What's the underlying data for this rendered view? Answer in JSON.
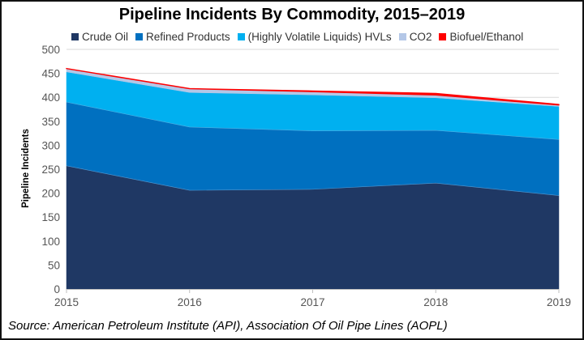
{
  "chart_data": {
    "type": "area",
    "stacked": true,
    "title": "Pipeline Incidents By Commodity, 2015–2019",
    "xlabel": "",
    "ylabel": "Pipeline Incidents",
    "categories": [
      "2015",
      "2016",
      "2017",
      "2018",
      "2019"
    ],
    "ylim": [
      0,
      500
    ],
    "yticks": [
      0,
      50,
      100,
      150,
      200,
      250,
      300,
      350,
      400,
      450,
      500
    ],
    "grid": true,
    "legend": "top",
    "series": [
      {
        "name": "Crude Oil",
        "color": "#1f3864",
        "values": [
          257,
          206,
          208,
          221,
          195
        ]
      },
      {
        "name": "Refined Products",
        "color": "#0070c0",
        "values": [
          133,
          132,
          122,
          110,
          117
        ]
      },
      {
        "name": "(Highly Volatile Liquids) HVLs",
        "color": "#00b0f0",
        "values": [
          63,
          72,
          75,
          68,
          69
        ]
      },
      {
        "name": "CO2",
        "color": "#b4c7e7",
        "values": [
          7,
          8,
          7,
          6,
          3
        ]
      },
      {
        "name": "Biofuel/Ethanol",
        "color": "#ff0000",
        "values": [
          0,
          0,
          1,
          3,
          1
        ]
      }
    ],
    "source": "Source: American Petroleum Institute (API), Association Of Oil Pipe Lines (AOPL)"
  }
}
